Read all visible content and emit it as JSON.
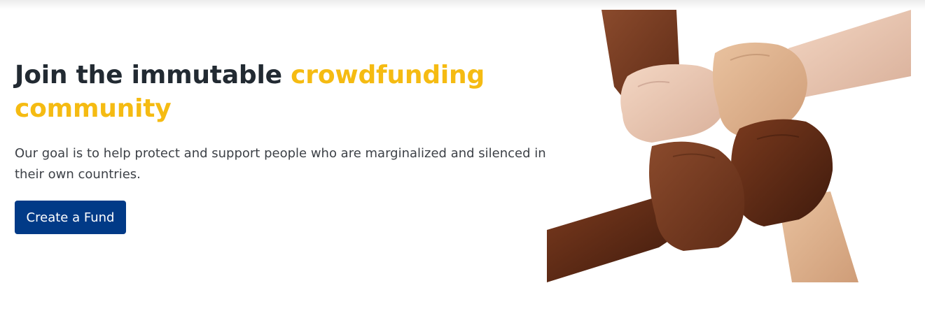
{
  "hero": {
    "headline_main": "Join the immutable ",
    "headline_accent": "crowdfunding community",
    "subtitle": "Our goal is to help protect and support people who are marginalized and silenced in their own countries.",
    "cta_label": "Create a Fund"
  },
  "image": {
    "subject": "four-hands-linked-wrists-photo"
  },
  "colors": {
    "heading": "#222a32",
    "accent": "#f5bb12",
    "button": "#013a87",
    "button_text": "#ffffff"
  }
}
